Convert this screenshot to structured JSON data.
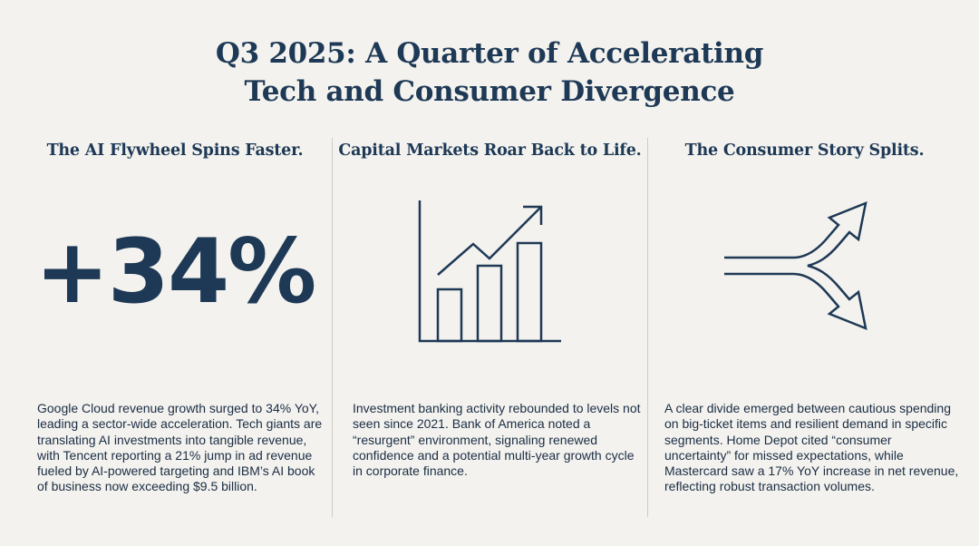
{
  "header": {
    "title_line1": "Q3 2025: A Quarter of Accelerating",
    "title_line2": "Tech and Consumer Divergence"
  },
  "columns": [
    {
      "heading": "The AI Flywheel Spins Faster.",
      "stat": "+34%",
      "body": "Google Cloud revenue growth surged to 34% YoY, leading a sector-wide acceleration. Tech giants are translating AI investments into tangible revenue, with Tencent reporting a 21% jump in ad revenue fueled by AI-powered targeting and IBM’s AI book of business now exceeding $9.5 billion."
    },
    {
      "heading": "Capital Markets Roar Back to Life.",
      "icon": "bar-chart-trend-up-icon",
      "body": "Investment banking activity rebounded to levels not seen since 2021. Bank of America noted a “resurgent” environment, signaling renewed confidence and a potential multi-year growth cycle in corporate finance."
    },
    {
      "heading": "The Consumer Story Splits.",
      "icon": "diverging-arrows-icon",
      "body": "A clear divide emerged between cautious spending on big-ticket items and resilient demand in specific segments. Home Depot cited “consumer uncertainty” for missed expectations, while Mastercard saw a 17% YoY increase in net revenue, reflecting robust transaction volumes."
    }
  ],
  "colors": {
    "background": "#f3f2ee",
    "ink": "#1e3956"
  }
}
